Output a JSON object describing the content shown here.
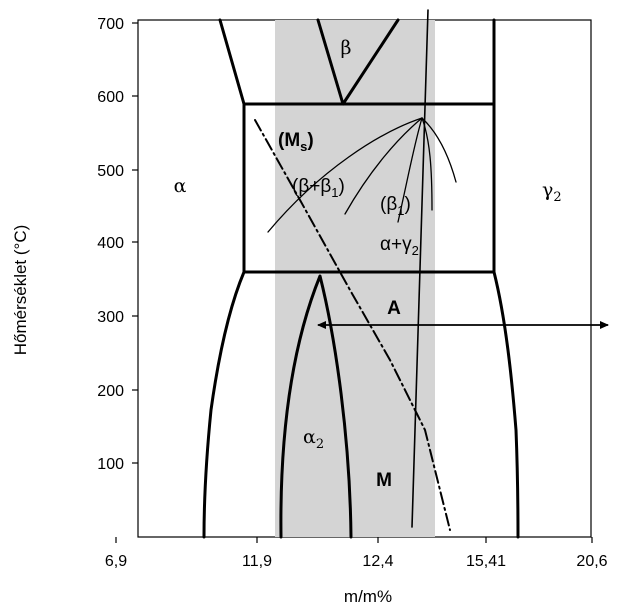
{
  "chart_data": {
    "type": "phase-diagram",
    "ylabel": "Hőmérséklet (°C)",
    "xlabel": "m/m%",
    "y_ticks": [
      "100",
      "200",
      "300",
      "400",
      "500",
      "600",
      "700"
    ],
    "x_ticks": [
      "6,9",
      "11,9",
      "12,4",
      "15,41",
      "20,6"
    ],
    "regions": [
      {
        "label": "β"
      },
      {
        "label": "(M",
        "sub": "s",
        "tail": ")"
      },
      {
        "label": "α"
      },
      {
        "label": "(β+β",
        "sub": "1",
        "tail": ")"
      },
      {
        "label": "(β",
        "sub": "1",
        "tail": ")"
      },
      {
        "label": "γ",
        "sub": "2",
        "tail": ""
      },
      {
        "label": "α+γ",
        "sub": "2",
        "tail": ""
      },
      {
        "label": "A"
      },
      {
        "label": "α",
        "sub": "2",
        "tail": ""
      },
      {
        "label": "M"
      }
    ],
    "grid": false,
    "colors": {
      "highlight_band": "#d4d4d4",
      "lines": "#000000",
      "background": "#ffffff"
    }
  }
}
